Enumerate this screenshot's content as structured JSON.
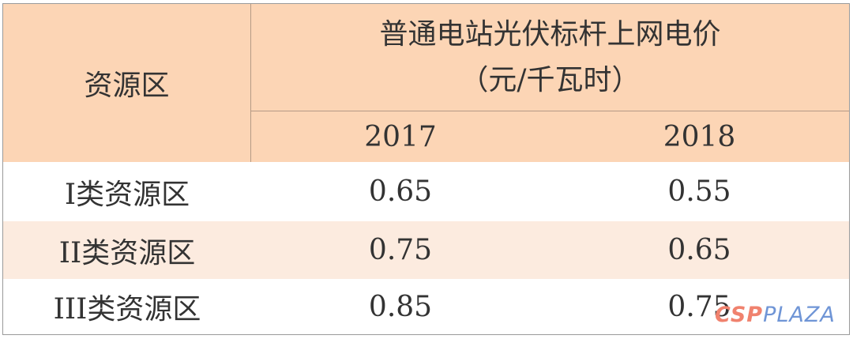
{
  "header": {
    "region_label": "资源区",
    "title_line1": "普通电站光伏标杆上网电价",
    "title_line2": "（元/千瓦时）",
    "years": [
      "2017",
      "2018"
    ]
  },
  "rows": [
    {
      "region": "I类资源区",
      "v2017": "0.65",
      "v2018": "0.55"
    },
    {
      "region": "II类资源区",
      "v2017": "0.75",
      "v2018": "0.65"
    },
    {
      "region": "III类资源区",
      "v2017": "0.85",
      "v2018": "0.75"
    }
  ],
  "watermark": {
    "part1": "CSP",
    "part2": "PLAZA"
  },
  "colors": {
    "header_bg": "#fcd5b5",
    "alt_row_bg": "#fcebdf"
  }
}
